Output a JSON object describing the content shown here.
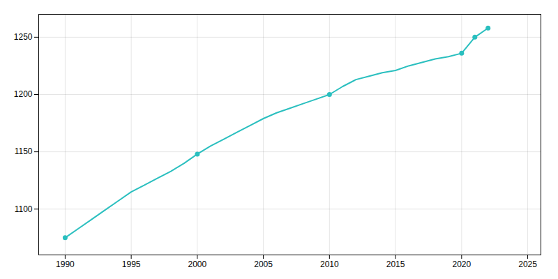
{
  "chart_data": {
    "type": "line",
    "x": [
      1990,
      1991,
      1992,
      1993,
      1994,
      1995,
      1996,
      1997,
      1998,
      1999,
      2000,
      2001,
      2002,
      2003,
      2004,
      2005,
      2006,
      2007,
      2008,
      2009,
      2010,
      2011,
      2012,
      2013,
      2014,
      2015,
      2016,
      2017,
      2018,
      2019,
      2020,
      2021,
      2022
    ],
    "series": [
      {
        "type": "line",
        "color": "#2abfbf",
        "values": [
          1075,
          1083,
          1091,
          1099,
          1107,
          1115,
          1121,
          1127,
          1133,
          1140,
          1148,
          1155,
          1161,
          1167,
          1173,
          1179,
          1184,
          1188,
          1192,
          1196,
          1200,
          1207,
          1213,
          1216,
          1219,
          1221,
          1225,
          1228,
          1231,
          1233,
          1236,
          1250,
          1258
        ]
      },
      {
        "type": "scatter",
        "marker": "o",
        "color": "#2abfbf",
        "values": [
          1075,
          null,
          null,
          null,
          null,
          null,
          null,
          null,
          null,
          null,
          1148,
          null,
          null,
          null,
          null,
          null,
          null,
          null,
          null,
          null,
          1200,
          null,
          null,
          null,
          null,
          null,
          null,
          null,
          null,
          null,
          1236,
          1250,
          1258
        ]
      }
    ],
    "xlim": [
      1988,
      2026
    ],
    "ylim": [
      1060,
      1270
    ],
    "xticks": [
      1990,
      1995,
      2000,
      2005,
      2010,
      2015,
      2020,
      2025
    ],
    "yticks": [
      1100,
      1150,
      1200,
      1250
    ],
    "grid": true
  }
}
